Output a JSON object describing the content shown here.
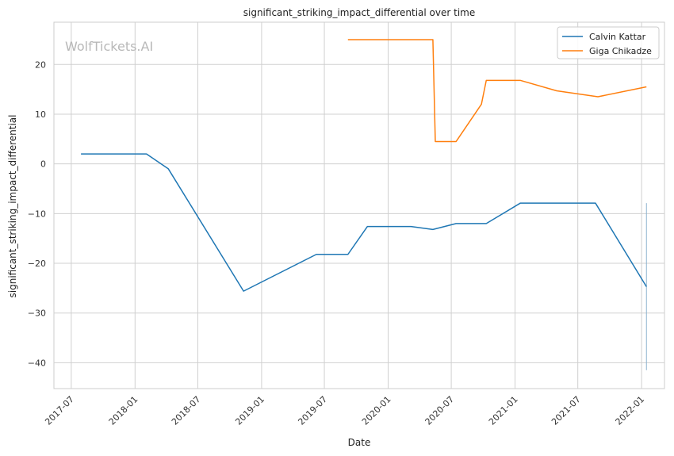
{
  "chart_data": {
    "type": "line",
    "title": "significant_striking_impact_differential over time",
    "xlabel": "Date",
    "ylabel": "significant_striking_impact_differential",
    "watermark": "WolfTickets.AI",
    "x_ticks": [
      "2017-07",
      "2018-01",
      "2018-07",
      "2019-01",
      "2019-07",
      "2020-01",
      "2020-07",
      "2021-01",
      "2021-07",
      "2022-01"
    ],
    "y_ticks": [
      20,
      10,
      0,
      -10,
      -20,
      -30,
      -40
    ],
    "y_tick_labels": [
      "20",
      "10",
      "0",
      "−10",
      "−20",
      "−30",
      "−40"
    ],
    "xlim": [
      "2017-05-12",
      "2022-03-08"
    ],
    "ylim": [
      -45.2,
      28.5
    ],
    "grid": true,
    "legend_position": "top-right",
    "series": [
      {
        "name": "Calvin Kattar",
        "color": "#1f77b4",
        "points": [
          {
            "x": "2017-07-29",
            "y": 2.0
          },
          {
            "x": "2018-02-03",
            "y": 2.0
          },
          {
            "x": "2018-04-07",
            "y": -1.0
          },
          {
            "x": "2018-11-10",
            "y": -25.6
          },
          {
            "x": "2019-06-08",
            "y": -18.2
          },
          {
            "x": "2019-09-07",
            "y": -18.2
          },
          {
            "x": "2019-11-02",
            "y": -12.6
          },
          {
            "x": "2020-03-07",
            "y": -12.6
          },
          {
            "x": "2020-05-09",
            "y": -13.2
          },
          {
            "x": "2020-07-15",
            "y": -12.0
          },
          {
            "x": "2020-10-10",
            "y": -12.0
          },
          {
            "x": "2021-01-16",
            "y": -7.9
          },
          {
            "x": "2021-08-21",
            "y": -7.9
          },
          {
            "x": "2022-01-15",
            "y": -24.7
          }
        ]
      },
      {
        "name": "Giga Chikadze",
        "color": "#ff7f0e",
        "points": [
          {
            "x": "2019-09-07",
            "y": 25.0
          },
          {
            "x": "2020-05-09",
            "y": 25.0
          },
          {
            "x": "2020-05-16",
            "y": 4.5
          },
          {
            "x": "2020-07-15",
            "y": 4.5
          },
          {
            "x": "2020-09-26",
            "y": 12.0
          },
          {
            "x": "2020-10-10",
            "y": 16.8
          },
          {
            "x": "2021-01-16",
            "y": 16.8
          },
          {
            "x": "2021-05-01",
            "y": 14.7
          },
          {
            "x": "2021-08-28",
            "y": 13.5
          },
          {
            "x": "2022-01-15",
            "y": 15.5
          }
        ]
      }
    ],
    "vertical_marker": {
      "x": "2022-01-15",
      "y_from": -41.5,
      "y_to": -7.9,
      "color": "#8fb4d0"
    }
  }
}
